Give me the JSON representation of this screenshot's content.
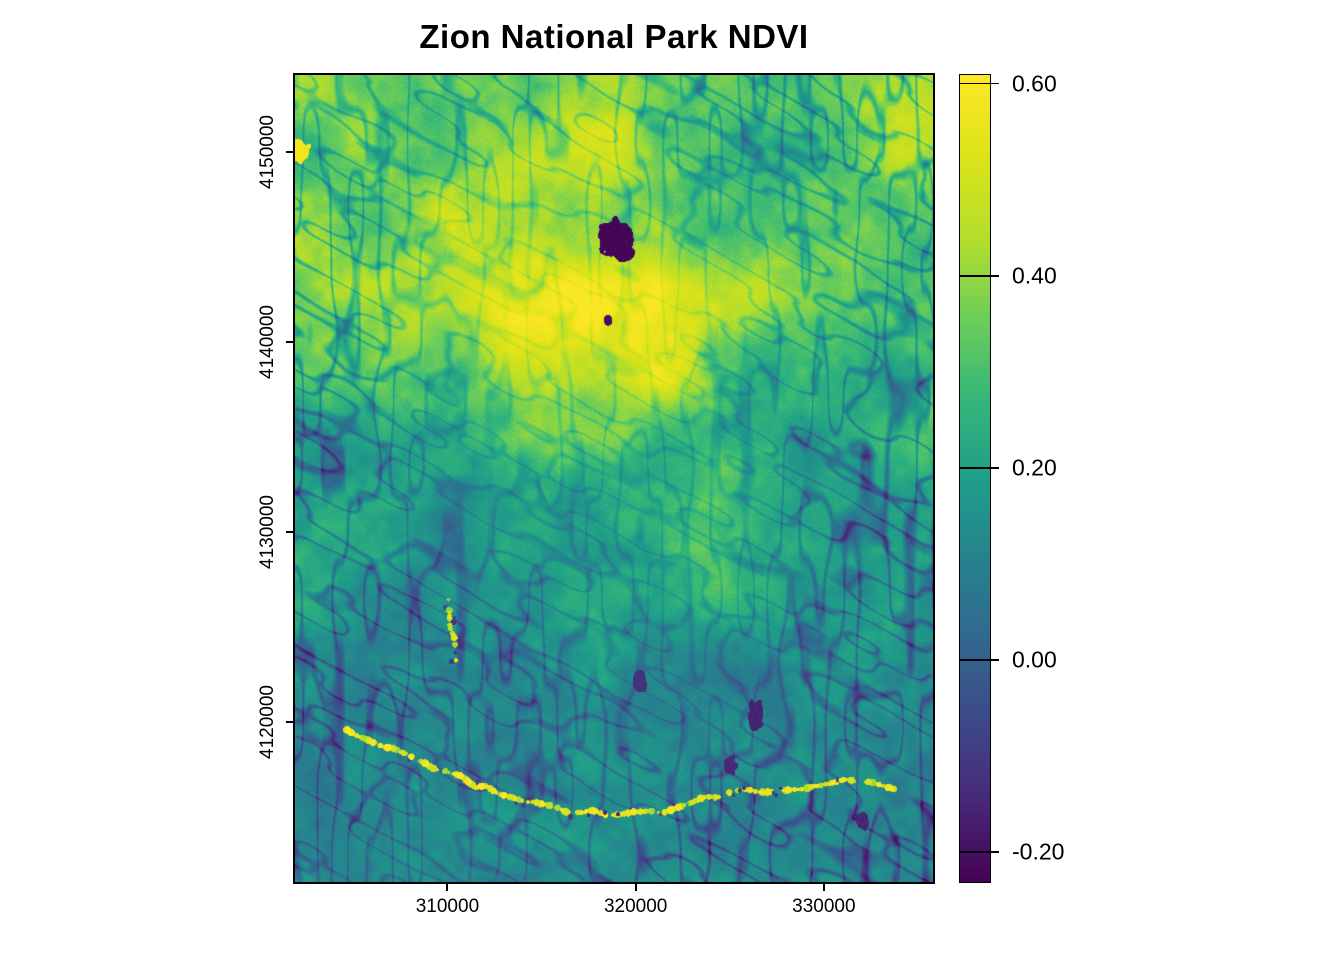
{
  "title": "Zion National Park NDVI",
  "chart_data": {
    "type": "heatmap",
    "subtype": "geographic-raster-map",
    "title": "Zion National Park NDVI",
    "value_name": "NDVI",
    "grid": false,
    "x_axis": {
      "tick_values": [
        310000,
        320000,
        330000
      ],
      "tick_labels": [
        "310000",
        "320000",
        "330000"
      ],
      "range": [
        301900,
        335800
      ]
    },
    "y_axis": {
      "tick_values": [
        4150000,
        4140000,
        4130000,
        4120000
      ],
      "tick_labels": [
        "4150000",
        "4140000",
        "4130000",
        "4120000"
      ],
      "range": [
        4111600,
        4154050
      ]
    },
    "colorbar": {
      "position": "right",
      "tick_values": [
        0.6,
        0.4,
        0.2,
        0.0,
        -0.2
      ],
      "tick_labels": [
        "0.60",
        "0.40",
        "0.20",
        "0.00",
        "-0.20"
      ],
      "range": [
        -0.231,
        0.609
      ],
      "palette_name": "viridis",
      "palette_stops": [
        {
          "t": 0.0,
          "color": "#440154"
        },
        {
          "t": 0.1,
          "color": "#482878"
        },
        {
          "t": 0.2,
          "color": "#3e4989"
        },
        {
          "t": 0.3,
          "color": "#31688e"
        },
        {
          "t": 0.4,
          "color": "#26828e"
        },
        {
          "t": 0.5,
          "color": "#1f9e89"
        },
        {
          "t": 0.6,
          "color": "#35b779"
        },
        {
          "t": 0.7,
          "color": "#6ece58"
        },
        {
          "t": 0.8,
          "color": "#b5de2b"
        },
        {
          "t": 0.9,
          "color": "#dce319"
        },
        {
          "t": 1.0,
          "color": "#fde725"
        }
      ]
    },
    "region_summary": [
      {
        "area": "north-plateau",
        "ndvi_approx": [
          0.3,
          0.55
        ]
      },
      {
        "area": "central-canyons",
        "ndvi_approx": [
          0.15,
          0.35
        ]
      },
      {
        "area": "south-desert",
        "ndvi_approx": [
          0.1,
          0.2
        ]
      }
    ],
    "features": [
      {
        "name": "kolob-reservoir-dark-waterbody",
        "type": "blob",
        "fx": 0.501,
        "fy": 0.2,
        "frx": 0.027,
        "fry": 0.024,
        "value": -0.22
      },
      {
        "name": "kolob-reservoir-south-lobe",
        "type": "blob",
        "fx": 0.514,
        "fy": 0.219,
        "frx": 0.015,
        "fry": 0.012,
        "value": -0.22
      },
      {
        "name": "small-pond",
        "type": "blob",
        "fx": 0.49,
        "fy": 0.304,
        "frx": 0.007,
        "fry": 0.006,
        "value": -0.2
      },
      {
        "name": "bright-meadow-west-edge",
        "type": "blob",
        "fx": 0.006,
        "fy": 0.094,
        "frx": 0.018,
        "fry": 0.014,
        "value": 0.58
      },
      {
        "name": "virgin-river-bright-corridor",
        "type": "bright-path",
        "value": 0.52,
        "points": [
          [
            0.078,
            0.809
          ],
          [
            0.125,
            0.826
          ],
          [
            0.18,
            0.846
          ],
          [
            0.243,
            0.867
          ],
          [
            0.321,
            0.89
          ],
          [
            0.384,
            0.905
          ],
          [
            0.447,
            0.913
          ],
          [
            0.509,
            0.917
          ],
          [
            0.572,
            0.911
          ],
          [
            0.635,
            0.898
          ],
          [
            0.697,
            0.888
          ],
          [
            0.76,
            0.886
          ],
          [
            0.823,
            0.881
          ],
          [
            0.885,
            0.871
          ],
          [
            0.94,
            0.883
          ]
        ]
      },
      {
        "name": "tributary-bright-dashes",
        "type": "bright-path",
        "value": 0.48,
        "points": [
          [
            0.238,
            0.65
          ],
          [
            0.245,
            0.69
          ],
          [
            0.25,
            0.726
          ]
        ]
      },
      {
        "name": "dark-canyon-patch-1",
        "type": "blob",
        "fx": 0.721,
        "fy": 0.793,
        "frx": 0.012,
        "fry": 0.02,
        "value": -0.16
      },
      {
        "name": "dark-canyon-patch-2",
        "type": "blob",
        "fx": 0.682,
        "fy": 0.855,
        "frx": 0.01,
        "fry": 0.014,
        "value": -0.14
      },
      {
        "name": "dark-canyon-patch-3",
        "type": "blob",
        "fx": 0.541,
        "fy": 0.75,
        "frx": 0.011,
        "fry": 0.016,
        "value": -0.12
      },
      {
        "name": "dark-canyon-patch-4",
        "type": "blob",
        "fx": 0.889,
        "fy": 0.923,
        "frx": 0.01,
        "fry": 0.012,
        "value": -0.15
      }
    ]
  },
  "layout_colors": {
    "background": "#ffffff",
    "axis_line": "#000000",
    "text": "#000000"
  }
}
